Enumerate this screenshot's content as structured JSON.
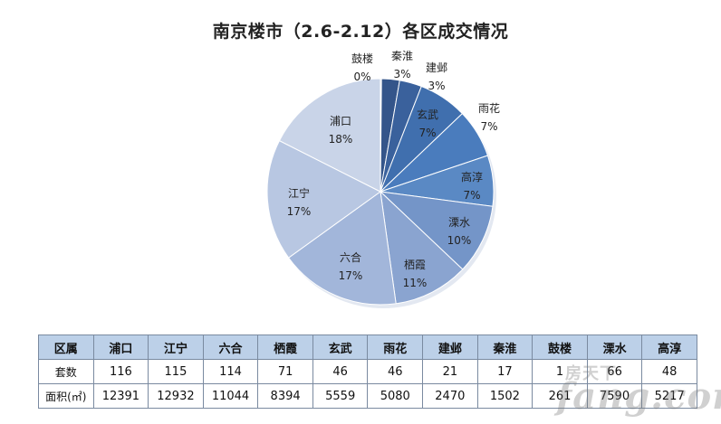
{
  "chart_data": {
    "type": "pie",
    "title": "南京楼市（2.6-2.12）各区成交情况",
    "slices": [
      {
        "name": "鼓楼",
        "label": "0%",
        "value": 1,
        "color": "#2f4a75"
      },
      {
        "name": "秦淮",
        "label": "3%",
        "value": 17,
        "color": "#34558a"
      },
      {
        "name": "建邺",
        "label": "3%",
        "value": 21,
        "color": "#3a619c"
      },
      {
        "name": "玄武",
        "label": "7%",
        "value": 46,
        "color": "#406fae"
      },
      {
        "name": "雨花",
        "label": "7%",
        "value": 46,
        "color": "#4a7cbd"
      },
      {
        "name": "高淳",
        "label": "7%",
        "value": 48,
        "color": "#5a89c4"
      },
      {
        "name": "溧水",
        "label": "10%",
        "value": 66,
        "color": "#7495c8"
      },
      {
        "name": "栖霞",
        "label": "11%",
        "value": 71,
        "color": "#8aa4d0"
      },
      {
        "name": "六合",
        "label": "17%",
        "value": 114,
        "color": "#a2b6da"
      },
      {
        "name": "江宁",
        "label": "17%",
        "value": 115,
        "color": "#b8c7e2"
      },
      {
        "name": "浦口",
        "label": "18%",
        "value": 116,
        "color": "#c9d4e8"
      }
    ]
  },
  "table": {
    "header": [
      "区属",
      "浦口",
      "江宁",
      "六合",
      "栖霞",
      "玄武",
      "雨花",
      "建邺",
      "秦淮",
      "鼓楼",
      "溧水",
      "高淳"
    ],
    "rows": [
      [
        "套数",
        "116",
        "115",
        "114",
        "71",
        "46",
        "46",
        "21",
        "17",
        "1",
        "66",
        "48"
      ],
      [
        "面积(㎡)",
        "12391",
        "12932",
        "11044",
        "8394",
        "5559",
        "5080",
        "2470",
        "1502",
        "261",
        "7590",
        "5217"
      ]
    ]
  },
  "watermark": {
    "cn": "房天下",
    "en": "fang.com"
  }
}
